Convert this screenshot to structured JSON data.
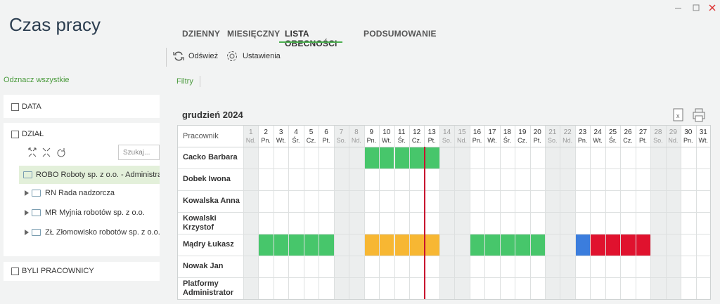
{
  "app": {
    "title": "Czas pracy",
    "tabs": [
      "DZIENNY",
      "MIESIĘCZNY",
      "LISTA OBECNOŚCI",
      "PODSUMOWANIE"
    ],
    "active_tab": 2,
    "toolbar": [
      "Odśwież",
      "Ustawienia"
    ],
    "filters": "Filtry",
    "deselect_all": "Odznacz wszystkie",
    "panels": {
      "date": "DATA",
      "department": "DZIAŁ",
      "former": "BYLI PRACOWNICY",
      "search": "Szukaj...",
      "tree": [
        "ROBO Roboty sp. z o.o. - Administrator",
        "RN Rada nadzorcza",
        "MR Myjnia robotów sp. z o.o.",
        "ZŁ Złomowisko robotów sp. z o.o."
      ]
    }
  },
  "calendar": {
    "month": "grudzień 2024",
    "header": "Pracownik",
    "today": 13,
    "days": [
      [
        1,
        "Nd."
      ],
      [
        2,
        "Pn."
      ],
      [
        3,
        "Wt."
      ],
      [
        4,
        "Śr."
      ],
      [
        5,
        "Cz."
      ],
      [
        6,
        "Pt."
      ],
      [
        7,
        "So."
      ],
      [
        8,
        "Nd."
      ],
      [
        9,
        "Pn."
      ],
      [
        10,
        "Wt."
      ],
      [
        11,
        "Śr."
      ],
      [
        12,
        "Cz."
      ],
      [
        13,
        "Pt."
      ],
      [
        14,
        "So."
      ],
      [
        15,
        "Nd."
      ],
      [
        16,
        "Pn."
      ],
      [
        17,
        "Wt."
      ],
      [
        18,
        "Śr."
      ],
      [
        19,
        "Cz."
      ],
      [
        20,
        "Pt."
      ],
      [
        21,
        "So."
      ],
      [
        22,
        "Nd."
      ],
      [
        23,
        "Pn."
      ],
      [
        24,
        "Wt."
      ],
      [
        25,
        "Śr."
      ],
      [
        26,
        "Cz."
      ],
      [
        27,
        "Pt."
      ],
      [
        28,
        "So."
      ],
      [
        29,
        "Nd."
      ],
      [
        30,
        "Pn."
      ],
      [
        31,
        "Wt."
      ]
    ],
    "weekend_days": [
      "So.",
      "Nd."
    ],
    "employees": [
      {
        "name": "Cacko Barbara",
        "absences": [
          {
            "from": 9,
            "to": 13,
            "color": "#47c66b"
          }
        ]
      },
      {
        "name": "Dobek Iwona",
        "absences": []
      },
      {
        "name": "Kowalska Anna",
        "absences": []
      },
      {
        "name": "Kowalski Krzystof",
        "absences": []
      },
      {
        "name": "Mądry Łukasz",
        "absences": [
          {
            "from": 2,
            "to": 6,
            "color": "#47c66b"
          },
          {
            "from": 9,
            "to": 13,
            "color": "#f7b733"
          },
          {
            "from": 16,
            "to": 20,
            "color": "#47c66b"
          },
          {
            "from": 23,
            "to": 23,
            "color": "#3b7ddd"
          },
          {
            "from": 24,
            "to": 27,
            "color": "#e0122e"
          }
        ]
      },
      {
        "name": "Nowak Jan",
        "absences": []
      },
      {
        "name": "Platformy Administrator",
        "absences": []
      }
    ]
  }
}
